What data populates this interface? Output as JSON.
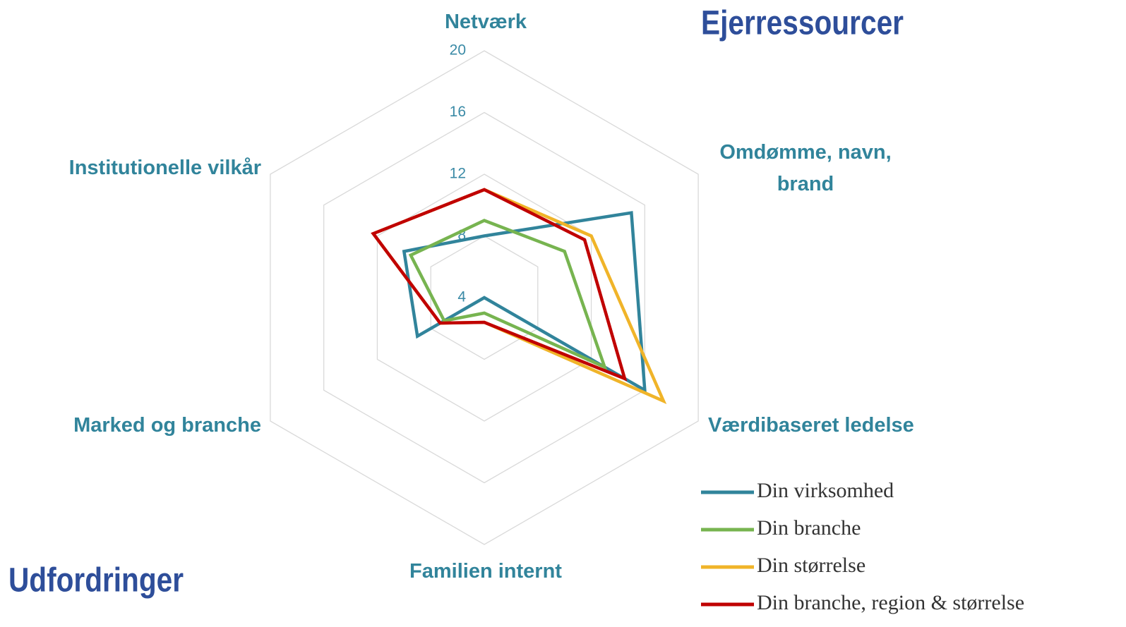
{
  "chart_data": {
    "type": "radar",
    "categories": [
      "Netværk",
      "Omdømme, navn, brand",
      "Værdibaseret ledelse",
      "Familien internt",
      "Marked og branche",
      "Institutionelle vilkår"
    ],
    "series": [
      {
        "name": "Din virksomhed",
        "color": "#31849b",
        "values": [
          8,
          15,
          16,
          4,
          9,
          10
        ]
      },
      {
        "name": "Din branche",
        "color": "#77b450",
        "values": [
          9,
          10,
          13,
          5,
          7,
          9.5
        ]
      },
      {
        "name": "Din størrelse",
        "color": "#f0b429",
        "values": [
          11,
          12,
          17.4,
          5.6,
          7.3,
          12.3
        ]
      },
      {
        "name": "Din branche, region & størrelse",
        "color": "#c00000",
        "values": [
          11,
          11.5,
          14.5,
          5.6,
          7.3,
          12.3
        ]
      }
    ],
    "ylim": [
      4,
      20
    ],
    "yticks": [
      4,
      8,
      12,
      16,
      20
    ],
    "grid": true,
    "annotations": [
      "Ejerressourcer",
      "Udfordringer"
    ]
  }
}
